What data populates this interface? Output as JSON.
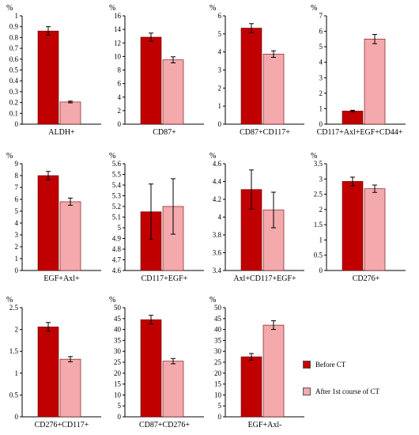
{
  "colors": {
    "before": "#c00000",
    "after": "#f4a9ac",
    "axis": "#000000"
  },
  "legend": {
    "before_label": "Before CT",
    "after_label": "After 1st course of  CT"
  },
  "chart_data": [
    {
      "type": "bar",
      "unit": "%",
      "xlabel": "ALDH+",
      "ylim": [
        0,
        1
      ],
      "ticks": [
        "0",
        "0.1",
        "0.2",
        "0.3",
        "0.4",
        "0.5",
        "0.6",
        "0.7",
        "0.8",
        "0.9",
        "1"
      ],
      "series": [
        {
          "name": "Before CT",
          "value": 0.86,
          "error": 0.04
        },
        {
          "name": "After 1st course of  CT",
          "value": 0.205,
          "error": 0.008
        }
      ]
    },
    {
      "type": "bar",
      "unit": "%",
      "xlabel": "CD87+",
      "ylim": [
        0,
        16
      ],
      "ticks": [
        "0",
        "2",
        "4",
        "6",
        "8",
        "10",
        "12",
        "14",
        "16"
      ],
      "series": [
        {
          "name": "Before CT",
          "value": 12.85,
          "error": 0.6
        },
        {
          "name": "After 1st course of  CT",
          "value": 9.5,
          "error": 0.45
        }
      ]
    },
    {
      "type": "bar",
      "unit": "%",
      "xlabel": "CD87+CD117+",
      "ylim": [
        0,
        6
      ],
      "ticks": [
        "0",
        "1",
        "2",
        "3",
        "4",
        "5",
        "6"
      ],
      "series": [
        {
          "name": "Before CT",
          "value": 5.32,
          "error": 0.25
        },
        {
          "name": "After 1st course of  CT",
          "value": 3.88,
          "error": 0.18
        }
      ]
    },
    {
      "type": "bar",
      "unit": "%",
      "xlabel": "CD117+Axl+EGF+CD44+",
      "ylim": [
        0,
        7
      ],
      "ticks": [
        "0",
        "1",
        "2",
        "3",
        "4",
        "5",
        "6",
        "7"
      ],
      "series": [
        {
          "name": "Before CT",
          "value": 0.85,
          "error": 0.05
        },
        {
          "name": "After 1st course of  CT",
          "value": 5.5,
          "error": 0.3
        }
      ]
    },
    {
      "type": "bar",
      "unit": "%",
      "xlabel": "EGF+Axl+",
      "ylim": [
        0,
        9
      ],
      "ticks": [
        "0",
        "1",
        "2",
        "3",
        "4",
        "5",
        "6",
        "7",
        "8",
        "9"
      ],
      "series": [
        {
          "name": "Before CT",
          "value": 8.0,
          "error": 0.35
        },
        {
          "name": "After 1st course of  CT",
          "value": 5.8,
          "error": 0.3
        }
      ]
    },
    {
      "type": "bar",
      "unit": "%",
      "xlabel": "CD117+EGF+",
      "ylim": [
        4.6,
        5.6
      ],
      "ticks": [
        "4.6",
        "4.7",
        "4.8",
        "4.9",
        "5",
        "5.1",
        "5.2",
        "5.3",
        "5.4",
        "5.5",
        "5.6"
      ],
      "series": [
        {
          "name": "Before CT",
          "value": 5.15,
          "error": 0.26
        },
        {
          "name": "After 1st course of  CT",
          "value": 5.2,
          "error": 0.26
        }
      ]
    },
    {
      "type": "bar",
      "unit": "%",
      "xlabel": "Axl+CD117+EGF+",
      "ylim": [
        3.4,
        4.6
      ],
      "ticks": [
        "3.4",
        "3.6",
        "3.8",
        "4",
        "4.2",
        "4.4",
        "4.6"
      ],
      "series": [
        {
          "name": "Before CT",
          "value": 4.31,
          "error": 0.22
        },
        {
          "name": "After 1st course of  CT",
          "value": 4.08,
          "error": 0.2
        }
      ]
    },
    {
      "type": "bar",
      "unit": "%",
      "xlabel": "CD276+",
      "ylim": [
        0,
        3.5
      ],
      "ticks": [
        "0",
        "0.5",
        "1",
        "1.5",
        "2",
        "2.5",
        "3",
        "3.5"
      ],
      "series": [
        {
          "name": "Before CT",
          "value": 2.92,
          "error": 0.14
        },
        {
          "name": "After 1st course of  CT",
          "value": 2.68,
          "error": 0.12
        }
      ]
    },
    {
      "type": "bar",
      "unit": "%",
      "xlabel": "CD276+CD117+",
      "ylim": [
        0,
        2.5
      ],
      "ticks": [
        "0",
        "0.5",
        "1",
        "1.5",
        "2",
        "2.5"
      ],
      "series": [
        {
          "name": "Before CT",
          "value": 2.06,
          "error": 0.1
        },
        {
          "name": "After 1st course of  CT",
          "value": 1.32,
          "error": 0.06
        }
      ]
    },
    {
      "type": "bar",
      "unit": "%",
      "xlabel": "CD87+CD276+",
      "ylim": [
        0,
        50
      ],
      "ticks": [
        "0",
        "5",
        "10",
        "15",
        "20",
        "25",
        "30",
        "35",
        "40",
        "45",
        "50"
      ],
      "series": [
        {
          "name": "Before CT",
          "value": 44.5,
          "error": 2.0
        },
        {
          "name": "After 1st course of  CT",
          "value": 25.5,
          "error": 1.2
        }
      ]
    },
    {
      "type": "bar",
      "unit": "%",
      "xlabel": "EGF+Axl-",
      "ylim": [
        0,
        50
      ],
      "ticks": [
        "0",
        "5",
        "10",
        "15",
        "20",
        "25",
        "30",
        "35",
        "40",
        "45",
        "50"
      ],
      "series": [
        {
          "name": "Before CT",
          "value": 27.5,
          "error": 1.5
        },
        {
          "name": "After 1st course of  CT",
          "value": 42.0,
          "error": 2.0
        }
      ]
    }
  ]
}
